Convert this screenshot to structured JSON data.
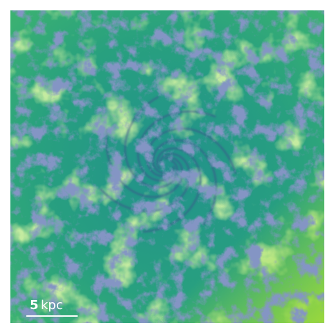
{
  "scale_bar": {
    "value": "5",
    "unit": "kpc"
  }
}
